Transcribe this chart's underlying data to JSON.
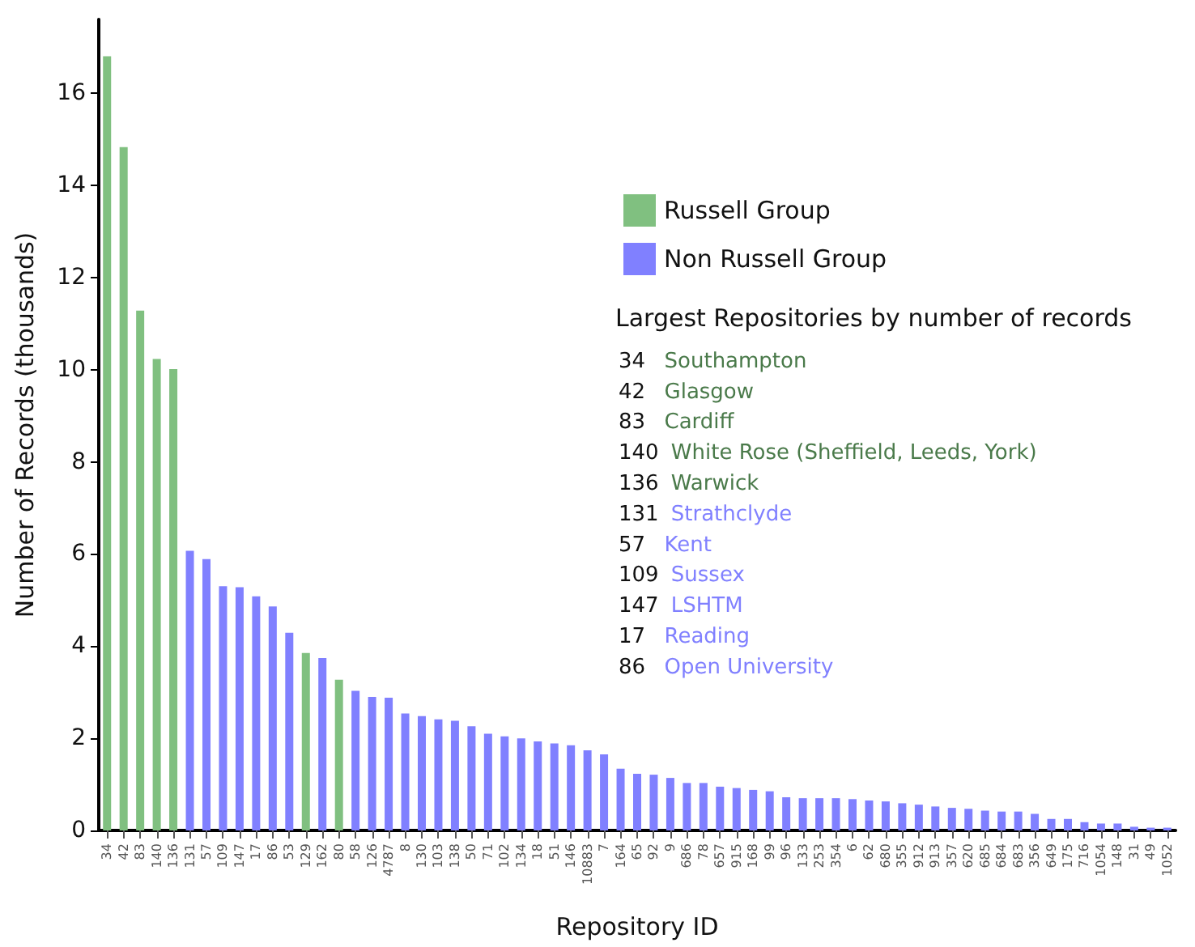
{
  "chart_data": {
    "type": "bar",
    "xlabel": "Repository ID",
    "ylabel": "Number of Records (thousands)",
    "categories": [
      "34",
      "42",
      "83",
      "140",
      "136",
      "131",
      "57",
      "109",
      "147",
      "17",
      "86",
      "53",
      "129",
      "162",
      "80",
      "58",
      "126",
      "4787",
      "8",
      "130",
      "103",
      "138",
      "50",
      "71",
      "102",
      "134",
      "18",
      "51",
      "146",
      "10883",
      "7",
      "164",
      "65",
      "92",
      "9",
      "686",
      "78",
      "657",
      "915",
      "168",
      "99",
      "96",
      "133",
      "253",
      "354",
      "6",
      "62",
      "680",
      "355",
      "912",
      "913",
      "357",
      "620",
      "685",
      "684",
      "683",
      "356",
      "649",
      "175",
      "716",
      "1054",
      "148",
      "31",
      "49",
      "1052"
    ],
    "stacked": true,
    "series": [
      {
        "name": "Russell Group",
        "color": "#80c080",
        "values": [
          16.8,
          14.83,
          11.28,
          10.23,
          10.01,
          null,
          null,
          null,
          null,
          null,
          null,
          null,
          3.85,
          null,
          3.27,
          null,
          null,
          null,
          null,
          null,
          null,
          null,
          null,
          null,
          null,
          null,
          null,
          null,
          null,
          null,
          null,
          null,
          null,
          null,
          null,
          null,
          null,
          null,
          null,
          null,
          null,
          null,
          null,
          null,
          null,
          null,
          null,
          null,
          null,
          null,
          null,
          null,
          null,
          null,
          null,
          null,
          null,
          null,
          null,
          null,
          null,
          null,
          null,
          null,
          null
        ]
      },
      {
        "name": "Non Russell Group",
        "color": "#8080ff",
        "values": [
          null,
          null,
          null,
          null,
          null,
          6.07,
          5.89,
          5.3,
          5.28,
          5.08,
          4.86,
          4.29,
          null,
          3.74,
          null,
          3.03,
          2.9,
          2.88,
          2.54,
          2.48,
          2.41,
          2.38,
          2.26,
          2.1,
          2.04,
          2.0,
          1.93,
          1.89,
          1.85,
          1.74,
          1.65,
          1.34,
          1.23,
          1.21,
          1.14,
          1.03,
          1.03,
          0.95,
          0.92,
          0.88,
          0.85,
          0.72,
          0.7,
          0.7,
          0.7,
          0.68,
          0.65,
          0.63,
          0.59,
          0.56,
          0.52,
          0.49,
          0.47,
          0.43,
          0.41,
          0.41,
          0.36,
          0.25,
          0.25,
          0.18,
          0.15,
          0.15,
          0.08,
          0.06,
          0.06
        ]
      }
    ],
    "ylim": [
      0,
      17.6
    ],
    "yticks": [
      0,
      2,
      4,
      6,
      8,
      10,
      12,
      14,
      16
    ],
    "grid": false,
    "legend": "top right",
    "annotations": [
      "Largest Repositories by number of records",
      "34 Southampton",
      "42 Glasgow",
      "83 Cardiff",
      "140 White Rose (Sheffield, Leeds, York)",
      "136 Warwick",
      "131 Strathclyde",
      "57 Kent",
      "109 Sussex",
      "147 LSHTM",
      "17 Reading",
      "86 Open University"
    ]
  }
}
